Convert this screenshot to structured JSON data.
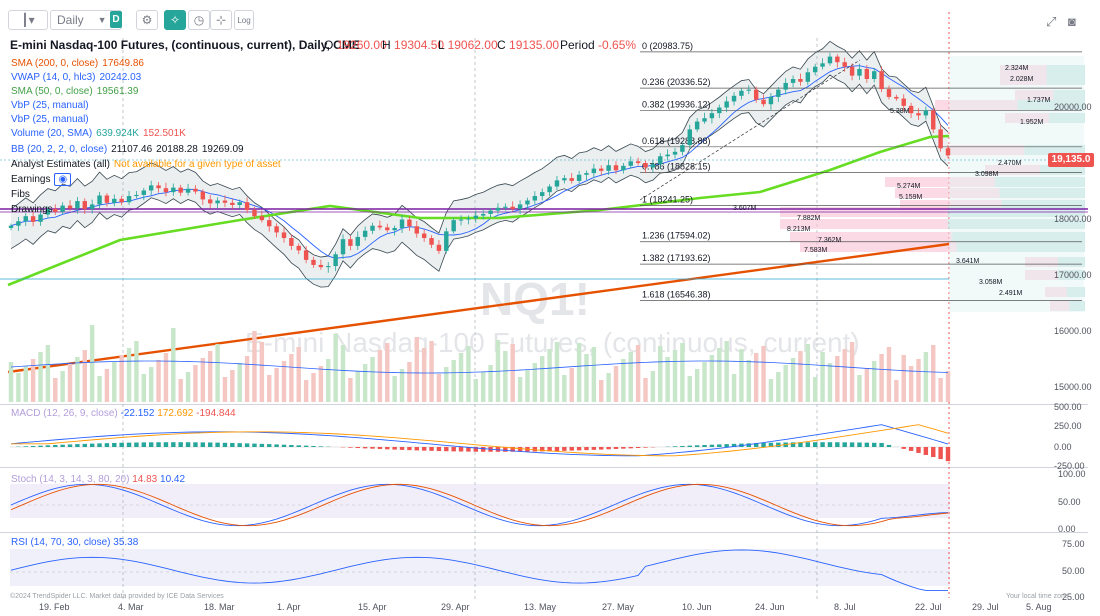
{
  "toolbar": {
    "timeframe": "Daily",
    "interval_badge": "D",
    "log_label": "Log"
  },
  "header": {
    "title": "E-mini Nasdaq-100 Futures, (continuous, current), Daily, CME",
    "open_key": "O",
    "open": "19260.00",
    "high_key": "H",
    "high": "19304.50",
    "low_key": "L",
    "low": "19062.00",
    "close_key": "C",
    "close": "19135.00",
    "period_key": "Period",
    "period": "-0.65%"
  },
  "legend": [
    {
      "name": "SMA (200, 0, close)",
      "value": "17649.86",
      "color": "#e65100"
    },
    {
      "name": "VWAP (14, 0, hlc3)",
      "value": "20242.03",
      "color": "#2962ff"
    },
    {
      "name": "SMA (50, 0, close)",
      "value": "19561.39",
      "color": "#66dd22"
    },
    {
      "name": "VbP (25, manual)",
      "value": "",
      "color": "#26a69a"
    },
    {
      "name": "VbP (25, manual)",
      "value": "",
      "color": "#26a69a"
    },
    {
      "name": "Volume (20, SMA)",
      "value": "639.924K",
      "value2": "152.501K",
      "color": "#26a69a"
    },
    {
      "name": "BB (20, 2, 2, 0, close)",
      "value": "21107.46",
      "value2": "20188.28",
      "value3": "19269.09",
      "color": "#2962ff"
    },
    {
      "name": "Analyst Estimates (all)",
      "value": "Not available for a given type of asset",
      "color": "#131722"
    },
    {
      "name": "Earnings",
      "value": "",
      "color": "#131722"
    },
    {
      "name": "Fibs",
      "value": "",
      "color": "#131722"
    },
    {
      "name": "Drawings",
      "value": "",
      "color": "#131722"
    }
  ],
  "watermark": {
    "symbol": "NQ1!",
    "name": "E-mini Nasdaq-100 Futures, (continuous, current)"
  },
  "current_price_badge": "19,135.0",
  "copyright": "©2024 TrendSpider LLC. Market data provided by ICE Data Services",
  "time_zone_label": "Your local time zone",
  "panes": {
    "macd": {
      "title": "MACD (12, 26, 9, close)",
      "v1": "-22.152",
      "v2": "172.692",
      "v3": "-194.844"
    },
    "stoch": {
      "title": "Stoch (14, 3, 14, 3, 80, 20)",
      "v1": "14.83",
      "v2": "10.42"
    },
    "rsi": {
      "title": "RSI (14, 70, 30, close)",
      "v1": "35.38"
    }
  },
  "colors": {
    "up": "#26a69a",
    "down": "#ef5350",
    "sma200": "#e65100",
    "sma50": "#66dd22",
    "bb": "#2962ff"
  },
  "chart_data": [
    {
      "type": "candlestick",
      "title": "E-mini Nasdaq-100 Futures, (continuous, current), Daily, CME",
      "x_tick_labels": [
        "19. Feb",
        "4. Mar",
        "18. Mar",
        "1. Apr",
        "15. Apr",
        "29. Apr",
        "13. May",
        "27. May",
        "10. Jun",
        "24. Jun",
        "8. Jul",
        "22. Jul",
        "29. Jul",
        "5. Aug"
      ],
      "y_tick_labels": [
        "20000.00",
        "19,135.0",
        "18000.00",
        "17000.00",
        "16000.00",
        "15000.00"
      ],
      "ylim": [
        14800,
        21300
      ],
      "close_series": [
        17880,
        17960,
        18050,
        17950,
        18080,
        18180,
        18130,
        18240,
        18190,
        18320,
        18180,
        18260,
        18420,
        18290,
        18360,
        18300,
        18410,
        18430,
        18510,
        18600,
        18550,
        18480,
        18560,
        18470,
        18540,
        18490,
        18350,
        18280,
        18330,
        18290,
        18250,
        18300,
        18160,
        18050,
        17980,
        17870,
        17760,
        17660,
        17520,
        17440,
        17270,
        17180,
        17140,
        17160,
        17370,
        17640,
        17520,
        17680,
        17790,
        17880,
        17850,
        17800,
        17840,
        17990,
        17870,
        17740,
        17660,
        17540,
        17430,
        17780,
        17980,
        17990,
        18010,
        18060,
        18090,
        18150,
        18200,
        18220,
        18180,
        18260,
        18330,
        18410,
        18480,
        18580,
        18690,
        18730,
        18680,
        18790,
        18820,
        18900,
        18860,
        18960,
        18870,
        18950,
        19030,
        19000,
        18920,
        18980,
        19120,
        19150,
        19200,
        19320,
        19600,
        19740,
        19800,
        19890,
        19990,
        20100,
        20200,
        20290,
        20310,
        20130,
        20050,
        20180,
        20310,
        20430,
        20500,
        20450,
        20620,
        20720,
        20780,
        20900,
        20800,
        20720,
        20560,
        20680,
        20500,
        20640,
        20320,
        20180,
        20150,
        20020,
        19890,
        19850,
        19940,
        19600,
        19262,
        19135
      ],
      "fib_levels": [
        {
          "label": "0 (20983.75)",
          "value": 20983.75
        },
        {
          "label": "0.236 (20336.52)",
          "value": 20336.52
        },
        {
          "label": "0.382 (19936.12)",
          "value": 19936.12
        },
        {
          "label": "0.618 (19288.88)",
          "value": 19288.88
        },
        {
          "label": "0.786 (18828.15)",
          "value": 18828.15
        },
        {
          "label": "1 (18241.25)",
          "value": 18241.25
        },
        {
          "label": "1.236 (17594.02)",
          "value": 17594.02
        },
        {
          "label": "1.382 (17193.62)",
          "value": 17193.62
        },
        {
          "label": "1.618 (16546.38)",
          "value": 16546.38
        }
      ],
      "volume_profile_labels": [
        "2.324M",
        "2.028M",
        "1.737M",
        "5.38M",
        "1.952M",
        "2.470M",
        "3.098M",
        "5.274M",
        "5.159M",
        "3.607M",
        "7.882M",
        "8.213M",
        "7.362M",
        "7.583M",
        "3.641M",
        "3.058M",
        "2.491M"
      ]
    },
    {
      "type": "bar",
      "title": "Volume",
      "y_tick_labels": []
    },
    {
      "type": "line",
      "title": "MACD (12, 26, 9, close)",
      "y_tick_labels": [
        "500.00",
        "250.00",
        "0.00",
        "-250.00"
      ],
      "ylim": [
        -250,
        500
      ]
    },
    {
      "type": "line",
      "title": "Stoch (14, 3, 14, 3, 80, 20)",
      "y_tick_labels": [
        "100.00",
        "50.00",
        "0.00"
      ],
      "ylim": [
        0,
        100
      ]
    },
    {
      "type": "line",
      "title": "RSI (14, 70, 30, close)",
      "y_tick_labels": [
        "75.00",
        "50.00",
        "25.00"
      ],
      "ylim": [
        25,
        75
      ]
    }
  ]
}
